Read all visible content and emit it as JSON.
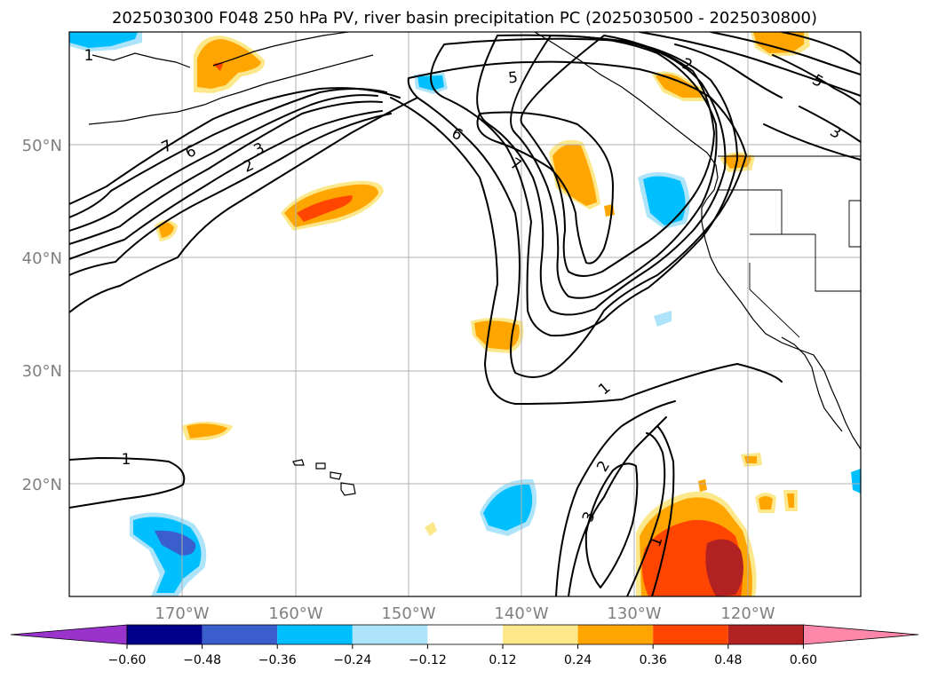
{
  "title": "2025030300 F048 250 hPa PV, river basin precipitation PC (2025030500 - 2025030800)",
  "lat_labels": [
    "50°N",
    "40°N",
    "30°N",
    "20°N"
  ],
  "lon_labels": [
    "170°W",
    "160°W",
    "150°W",
    "140°W",
    "130°W",
    "120°W"
  ],
  "contour_labels": [
    "1",
    "2",
    "3",
    "5",
    "6",
    "7",
    "1",
    "2",
    "3",
    "5",
    "6",
    "7",
    "1",
    "2",
    "3",
    "1"
  ],
  "colorbar": {
    "tick_labels": [
      "−0.60",
      "−0.48",
      "−0.36",
      "−0.24",
      "−0.12",
      "0.12",
      "0.24",
      "0.36",
      "0.48",
      "0.60"
    ],
    "colors": [
      "#9933cc",
      "#00008b",
      "#3a5fcd",
      "#00bfff",
      "#aee4fa",
      "#ffffff",
      "#fce88b",
      "#ffa500",
      "#ff4500",
      "#b22222",
      "#ff88aa"
    ]
  },
  "colors": {
    "pos_light": "#fce88b",
    "pos_orange": "#ffa500",
    "pos_red": "#ff4500",
    "pos_darkred": "#b22222",
    "neg_light": "#aee4fa",
    "neg_blue": "#00bfff",
    "neg_royal": "#3a5fcd"
  }
}
